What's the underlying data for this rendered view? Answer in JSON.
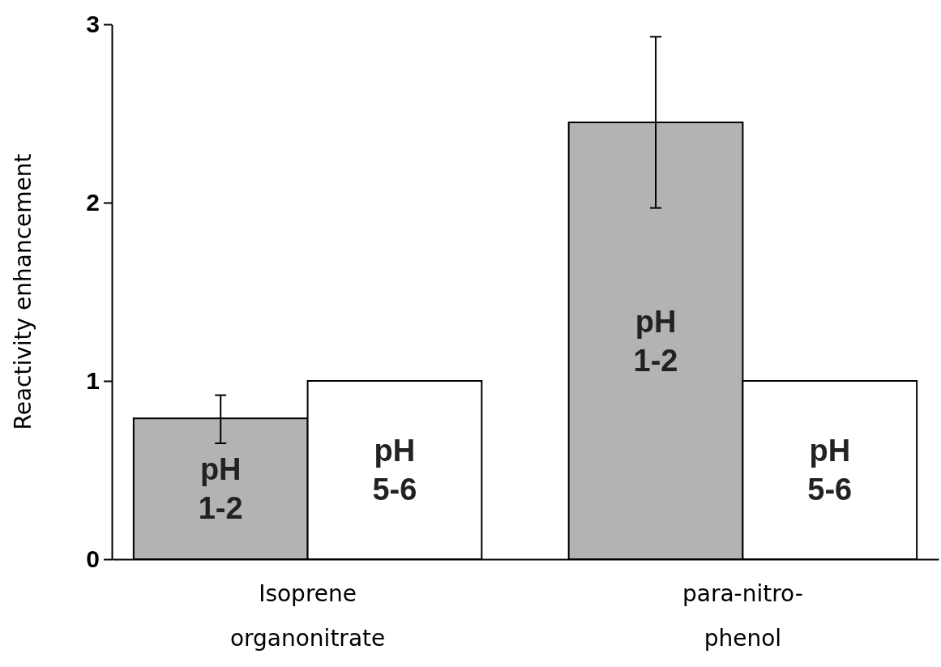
{
  "chart_data": {
    "type": "bar",
    "ylabel": "Reactivity enhancement",
    "categories": [
      "Isoprene organonitrate",
      "para-nitro-phenol"
    ],
    "ylim": [
      0,
      3
    ],
    "yticks": [
      0,
      1,
      2,
      3
    ],
    "grid": false,
    "legend": false,
    "series": [
      {
        "name": "pH 1-2",
        "color": "#b3b3b3",
        "values": [
          0.79,
          2.45
        ],
        "errors": [
          [
            0.65,
            0.92
          ],
          [
            1.97,
            2.93
          ]
        ]
      },
      {
        "name": "pH 5-6",
        "color": "#ffffff",
        "values": [
          1.0,
          1.0
        ],
        "errors": [
          null,
          null
        ]
      }
    ]
  }
}
